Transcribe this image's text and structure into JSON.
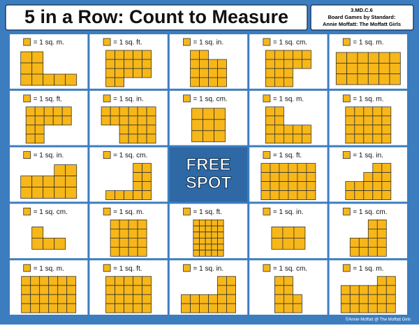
{
  "header": {
    "title": "5 in a Row: Count to Measure",
    "info": [
      "3.MD.C.6",
      "Board Games by Standard:",
      "Annie Moffatt: The Moffatt Girls"
    ]
  },
  "board": {
    "cells": [
      {
        "label": "= 1 sq. m."
      },
      {
        "label": "= 1 sq. ft."
      },
      {
        "label": "= 1 sq. in."
      },
      {
        "label": "= 1 sq. cm."
      },
      {
        "label": "= 1 sq. m."
      },
      {
        "label": "= 1 sq. ft."
      },
      {
        "label": "= 1 sq. in."
      },
      {
        "label": "= 1 sq. cm."
      },
      {
        "label": "= 1 sq. m."
      },
      {
        "label": "= 1 sq. m."
      },
      {
        "label": "= 1 sq. in."
      },
      {
        "label": "= 1 sq. cm."
      },
      {
        "free": [
          "FREE",
          "SPOT"
        ]
      },
      {
        "label": "= 1 sq. ft."
      },
      {
        "label": "= 1 sq. in."
      },
      {
        "label": "= 1 sq. cm."
      },
      {
        "label": "= 1 sq. m."
      },
      {
        "label": "= 1 sq. ft."
      },
      {
        "label": "= 1 sq. in."
      },
      {
        "label": "= 1 sq. cm."
      },
      {
        "label": "= 1 sq. m."
      },
      {
        "label": "= 1 sq. ft."
      },
      {
        "label": "= 1 sq. in."
      },
      {
        "label": "= 1 sq. cm."
      },
      {
        "label": "= 1 sq. m."
      }
    ]
  },
  "footer": "©Annie Moffatt @ The Moffatt Girls"
}
